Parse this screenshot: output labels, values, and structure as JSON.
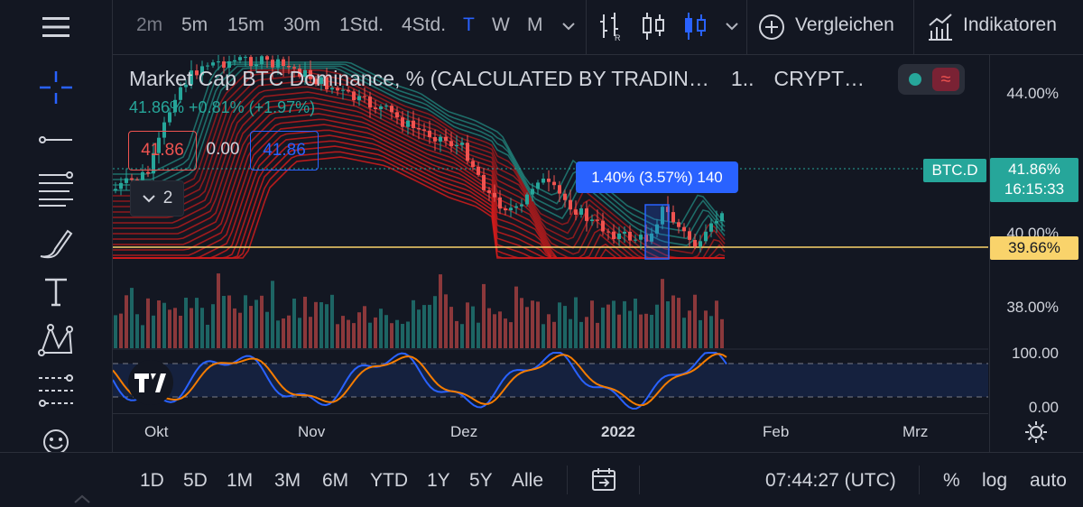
{
  "toolbar": {
    "timeframes": [
      "2m",
      "5m",
      "15m",
      "30m",
      "1Std.",
      "4Std.",
      "T",
      "W",
      "M"
    ],
    "selected_timeframe": "T",
    "compare_label": "Vergleichen",
    "indicators_label": "Indikatoren"
  },
  "legend": {
    "title": "Market Cap BTC Dominance, % (CALCULATED BY TRADIN…",
    "interval": "1..",
    "exchange": "CRYPT…",
    "values": "41.86% +0.81% (+1.97%)",
    "sell_price": "41.86",
    "spread": "0.00",
    "buy_price": "41.86",
    "collapsed_count": "2"
  },
  "measure_label": "1.40% (3.57%) 140",
  "price_axis": {
    "ticks": [
      "44.00%",
      "40.00%",
      "38.00%",
      "100.00",
      "0.00"
    ],
    "symbol_tag": "BTC.D",
    "last_price": "41.86%",
    "countdown": "16:15:33",
    "hline_price": "39.66%"
  },
  "time_axis": {
    "ticks": [
      "Okt",
      "Nov",
      "Dez",
      "2022",
      "Feb",
      "Mrz"
    ]
  },
  "bottom": {
    "ranges": [
      "1D",
      "5D",
      "1M",
      "3M",
      "6M",
      "YTD",
      "1Y",
      "5Y",
      "Alle"
    ],
    "clock": "07:44:27 (UTC)",
    "percent": "%",
    "log": "log",
    "auto": "auto"
  },
  "colors": {
    "bg": "#131722",
    "up": "#26a69a",
    "down": "#ef5350",
    "accent": "#2962ff",
    "hline": "#f9d36b",
    "ribbon": "#d01c1c"
  },
  "chart_data": {
    "type": "candlestick",
    "symbol": "BTC.D",
    "x_ticks": [
      "Okt",
      "Nov",
      "Dez",
      "2022",
      "Feb",
      "Mrz"
    ],
    "y_ticks": [
      "38.00%",
      "40.00%",
      "44.00%"
    ],
    "last": 41.86,
    "change": 0.81,
    "change_pct": 1.97,
    "hline": 39.66,
    "oscillator_range": [
      0,
      100
    ]
  }
}
